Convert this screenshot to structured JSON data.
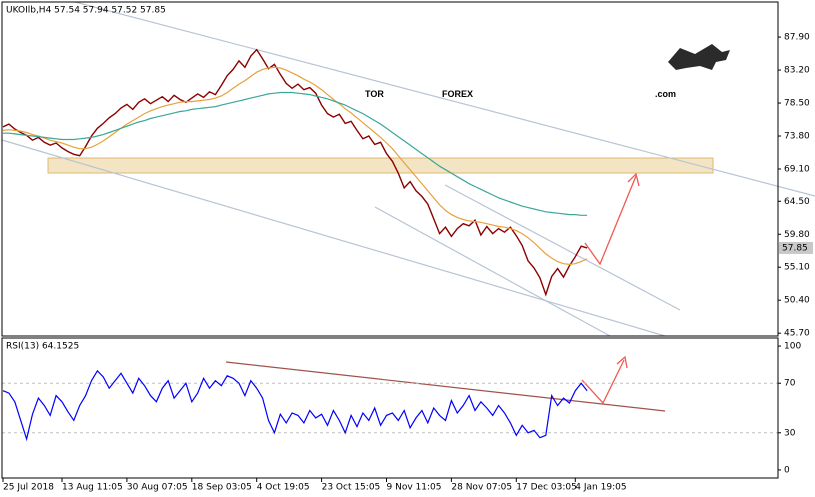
{
  "chart_data": [
    {
      "type": "line",
      "title": "UKOIlb,H4  57.54 57.94 57.52 57.85",
      "logo": {
        "tor": "TOR",
        "forex": "FOREX",
        "com": ".com"
      },
      "current_price": 57.85,
      "categories": [
        "25 Jul 2018",
        null,
        null,
        null,
        null,
        null,
        null,
        null,
        null,
        null,
        "13 Aug 11:05",
        null,
        null,
        null,
        null,
        null,
        null,
        null,
        null,
        null,
        null,
        "30 Aug 07:05",
        null,
        null,
        null,
        null,
        null,
        null,
        null,
        null,
        null,
        null,
        "18 Sep 03:05",
        null,
        null,
        null,
        null,
        null,
        null,
        null,
        null,
        null,
        null,
        "4 Oct 19:05",
        null,
        null,
        null,
        null,
        null,
        null,
        null,
        null,
        null,
        null,
        "23 Oct 15:05",
        null,
        null,
        null,
        null,
        null,
        null,
        null,
        null,
        null,
        null,
        "9 Nov 11:05",
        null,
        null,
        null,
        null,
        null,
        null,
        null,
        null,
        null,
        null,
        "28 Nov 07:05",
        null,
        null,
        null,
        null,
        null,
        null,
        null,
        null,
        null,
        null,
        "17 Dec 03:05",
        null,
        null,
        null,
        null,
        null,
        null,
        null,
        null,
        null,
        "4 Jan 19:05",
        null,
        null
      ],
      "series": [
        {
          "color": "#8b0000",
          "values": [
            75.1,
            75.5,
            74.8,
            74.3,
            73.9,
            73.2,
            73.6,
            72.9,
            72.5,
            72.8,
            72.1,
            71.6,
            71.2,
            71.0,
            72.3,
            73.8,
            74.9,
            75.6,
            76.4,
            77.0,
            77.8,
            78.3,
            77.6,
            78.6,
            79.1,
            78.4,
            78.9,
            79.4,
            78.7,
            79.6,
            79.0,
            78.6,
            79.2,
            79.8,
            79.3,
            80.1,
            79.7,
            81.0,
            82.4,
            83.3,
            84.5,
            83.6,
            85.2,
            86.1,
            84.8,
            83.4,
            84.0,
            82.6,
            81.3,
            80.6,
            81.2,
            80.4,
            80.7,
            79.9,
            78.2,
            77.0,
            76.5,
            76.9,
            75.6,
            75.9,
            74.6,
            73.4,
            73.8,
            72.6,
            72.9,
            71.3,
            70.2,
            68.5,
            66.4,
            67.3,
            66.0,
            65.2,
            64.1,
            62.0,
            59.9,
            60.8,
            59.5,
            60.6,
            61.3,
            61.0,
            61.8,
            59.7,
            60.9,
            59.9,
            60.6,
            60.1,
            60.8,
            59.6,
            58.2,
            56.0,
            55.0,
            53.6,
            51.2,
            53.8,
            54.9,
            53.7,
            55.3,
            56.6,
            58.1,
            57.85
          ]
        },
        {
          "color": "#e8a13a",
          "values": [
            74.6,
            74.7,
            74.6,
            74.5,
            74.3,
            74.0,
            73.8,
            73.5,
            73.2,
            73.0,
            72.8,
            72.5,
            72.2,
            72.0,
            72.0,
            72.2,
            72.6,
            73.1,
            73.7,
            74.3,
            74.9,
            75.5,
            76.0,
            76.5,
            77.0,
            77.4,
            77.7,
            78.0,
            78.2,
            78.4,
            78.6,
            78.7,
            78.7,
            78.8,
            78.9,
            79.0,
            79.2,
            79.5,
            80.0,
            80.6,
            81.2,
            81.7,
            82.3,
            82.9,
            83.3,
            83.5,
            83.6,
            83.5,
            83.2,
            82.8,
            82.4,
            81.9,
            81.5,
            81.0,
            80.4,
            79.7,
            79.0,
            78.4,
            77.7,
            77.1,
            76.4,
            75.7,
            75.0,
            74.3,
            73.6,
            72.8,
            72.0,
            71.0,
            70.0,
            69.0,
            68.0,
            67.0,
            66.0,
            65.0,
            64.0,
            63.2,
            62.6,
            62.2,
            61.9,
            61.7,
            61.6,
            61.5,
            61.3,
            61.1,
            60.9,
            60.8,
            60.6,
            60.3,
            59.9,
            59.3,
            58.6,
            57.8,
            57.0,
            56.4,
            55.9,
            55.6,
            55.5,
            55.6,
            55.9,
            56.3
          ]
        },
        {
          "color": "#3aa79a",
          "values": [
            74.2,
            74.2,
            74.1,
            74.0,
            73.9,
            73.8,
            73.7,
            73.6,
            73.5,
            73.4,
            73.3,
            73.3,
            73.3,
            73.4,
            73.5,
            73.6,
            73.8,
            74.0,
            74.3,
            74.6,
            74.9,
            75.2,
            75.5,
            75.8,
            76.0,
            76.3,
            76.5,
            76.7,
            76.9,
            77.1,
            77.3,
            77.4,
            77.6,
            77.7,
            77.8,
            77.9,
            78.0,
            78.2,
            78.4,
            78.6,
            78.8,
            79.0,
            79.2,
            79.4,
            79.6,
            79.8,
            79.9,
            80.0,
            80.0,
            80.0,
            79.9,
            79.8,
            79.7,
            79.5,
            79.3,
            79.1,
            78.8,
            78.5,
            78.2,
            77.8,
            77.4,
            77.0,
            76.5,
            76.0,
            75.5,
            74.9,
            74.3,
            73.7,
            73.1,
            72.5,
            71.9,
            71.3,
            70.7,
            70.1,
            69.5,
            69.0,
            68.5,
            68.0,
            67.5,
            67.0,
            66.6,
            66.2,
            65.8,
            65.4,
            65.0,
            64.7,
            64.4,
            64.1,
            63.8,
            63.6,
            63.4,
            63.2,
            63.0,
            62.9,
            62.8,
            62.7,
            62.6,
            62.6,
            62.5,
            62.5
          ]
        }
      ],
      "ylim": [
        45.3,
        92.9
      ],
      "yticks": [
        {
          "value": 87.9,
          "label": "87.90"
        },
        {
          "value": 83.2,
          "label": "83.20"
        },
        {
          "value": 78.5,
          "label": "78.50"
        },
        {
          "value": 73.8,
          "label": "73.80"
        },
        {
          "value": 69.1,
          "label": "69.10"
        },
        {
          "value": 64.5,
          "label": "64.50"
        },
        {
          "value": 59.8,
          "label": "59.80"
        },
        {
          "value": 55.1,
          "label": "55.10"
        },
        {
          "value": 50.4,
          "label": "50.40"
        },
        {
          "value": 45.7,
          "label": "45.70"
        }
      ]
    },
    {
      "type": "line",
      "title": "RSI(13) 64.1525",
      "series": [
        {
          "color": "#0000ff",
          "values": [
            64,
            62,
            55,
            40,
            25,
            45,
            58,
            52,
            44,
            60,
            55,
            47,
            40,
            52,
            60,
            72,
            80,
            75,
            66,
            72,
            78,
            70,
            62,
            74,
            68,
            60,
            55,
            66,
            72,
            58,
            64,
            70,
            55,
            62,
            74,
            66,
            72,
            68,
            76,
            74,
            70,
            60,
            72,
            66,
            58,
            40,
            30,
            45,
            38,
            46,
            44,
            38,
            48,
            42,
            45,
            36,
            48,
            40,
            30,
            44,
            35,
            46,
            40,
            50,
            36,
            44,
            46,
            40,
            48,
            34,
            42,
            48,
            38,
            50,
            44,
            40,
            56,
            46,
            52,
            60,
            48,
            55,
            50,
            44,
            52,
            46,
            38,
            28,
            36,
            30,
            32,
            26,
            28,
            60,
            52,
            58,
            54,
            64,
            70,
            64
          ]
        }
      ],
      "ylim": [
        -6.5,
        106.5
      ],
      "yticks": [
        100,
        70,
        30,
        0
      ],
      "levels": [
        70,
        30
      ]
    }
  ]
}
